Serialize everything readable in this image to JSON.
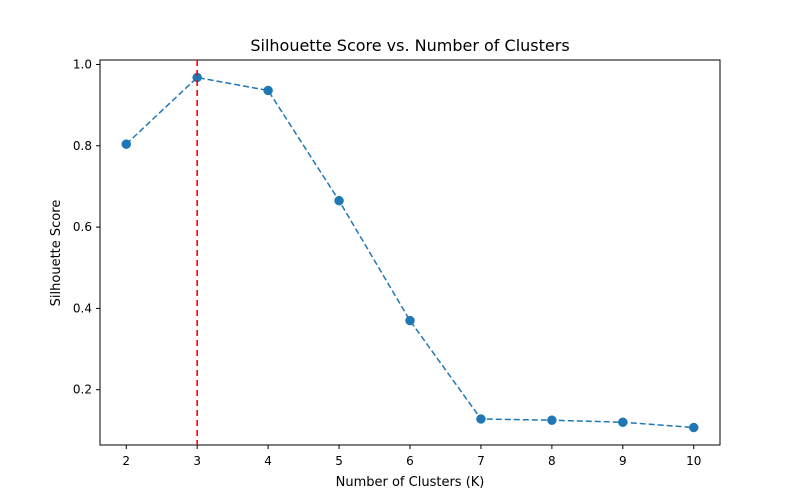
{
  "chart_data": {
    "type": "line",
    "title": "Silhouette Score vs. Number of Clusters",
    "xlabel": "Number of Clusters (K)",
    "ylabel": "Silhouette Score",
    "x": [
      2,
      3,
      4,
      5,
      6,
      7,
      8,
      9,
      10
    ],
    "series": [
      {
        "values": [
          0.804,
          0.968,
          0.936,
          0.665,
          0.37,
          0.128,
          0.125,
          0.12,
          0.107
        ],
        "color": "#1f77b4",
        "line_style": "dashed",
        "marker": "circle"
      }
    ],
    "xticks": [
      2,
      3,
      4,
      5,
      6,
      7,
      8,
      9,
      10
    ],
    "yticks": [
      0.2,
      0.4,
      0.6,
      0.8,
      1.0
    ],
    "ytick_labels": [
      "0.2",
      "0.4",
      "0.6",
      "0.8",
      "1.0"
    ],
    "xlim": [
      1.63,
      10.37
    ],
    "ylim": [
      0.064,
      1.011
    ],
    "grid": false,
    "legend": false,
    "reference_line": {
      "orientation": "vertical",
      "x": 3,
      "color": "#ff0000",
      "line_style": "dashed"
    }
  }
}
